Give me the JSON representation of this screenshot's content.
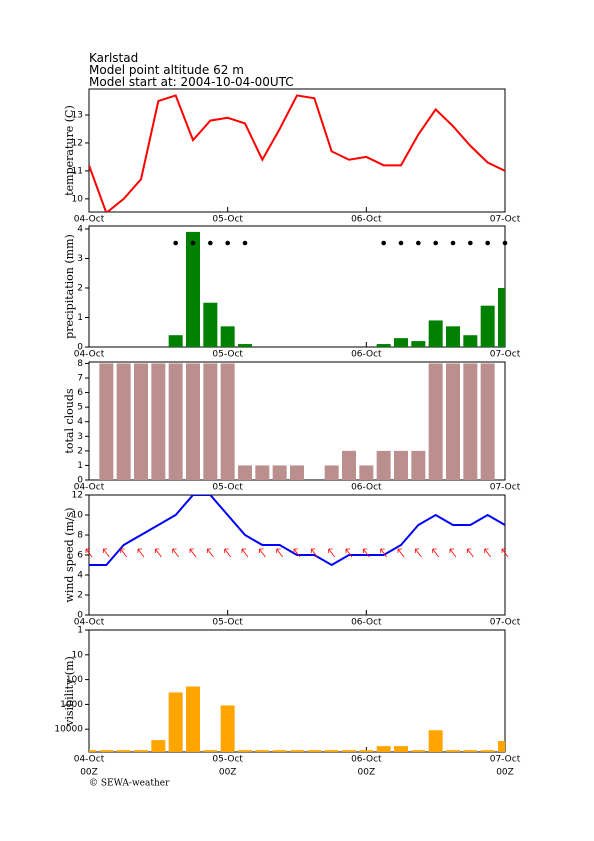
{
  "header": {
    "location": "Karlstad",
    "altitude": "Model point altitude  62 m",
    "start": "Model start at: 2004-10-04-00UTC"
  },
  "footer": "© SEWA-weather",
  "time_labels": [
    "00Z",
    "00Z",
    "00Z",
    "00Z"
  ],
  "chart_data": [
    {
      "type": "line",
      "y_label": "temperature (C)",
      "color": "#ff0000",
      "x": [
        0,
        3,
        6,
        9,
        12,
        15,
        18,
        21,
        24,
        27,
        30,
        33,
        36,
        39,
        42,
        45,
        48,
        51,
        54,
        57,
        60,
        63,
        66,
        69,
        72
      ],
      "values": [
        11.2,
        9.5,
        10.0,
        10.7,
        13.5,
        13.7,
        12.1,
        12.8,
        12.9,
        12.7,
        11.4,
        12.5,
        13.7,
        13.6,
        11.7,
        11.4,
        11.5,
        11.2,
        11.2,
        12.3,
        13.2,
        12.6,
        11.9,
        11.3,
        11.0
      ],
      "xlim": [
        0,
        72
      ],
      "xticks": [
        {
          "value": 0,
          "label": "04-Oct"
        },
        {
          "value": 24,
          "label": "05-Oct"
        },
        {
          "value": 48,
          "label": "06-Oct"
        },
        {
          "value": 72,
          "label": "07-Oct"
        }
      ],
      "ylim": [
        9.53,
        13.93
      ],
      "yticks": [
        10,
        11,
        12,
        13
      ]
    },
    {
      "type": "bar",
      "y_label": "precipitation (mm)",
      "color": "#008000",
      "x": [
        0,
        3,
        6,
        9,
        12,
        15,
        18,
        21,
        24,
        27,
        30,
        33,
        36,
        39,
        42,
        45,
        48,
        51,
        54,
        57,
        60,
        63,
        66,
        69,
        72
      ],
      "values": [
        0,
        0,
        0,
        0,
        0,
        0.4,
        3.9,
        1.5,
        0.7,
        0.1,
        0,
        0,
        0,
        0,
        0,
        0,
        0,
        0.1,
        0.3,
        0.2,
        0.9,
        0.7,
        0.4,
        1.4,
        2.0
      ],
      "xlim": [
        0,
        72
      ],
      "xticks": [
        {
          "value": 0,
          "label": "04-Oct"
        },
        {
          "value": 24,
          "label": "05-Oct"
        },
        {
          "value": 48,
          "label": "06-Oct"
        },
        {
          "value": 72,
          "label": "07-Oct"
        }
      ],
      "ylim": [
        0,
        4.1
      ],
      "yticks": [
        0,
        1,
        2,
        3,
        4
      ]
    },
    {
      "type": "bar",
      "y_label": "total clouds",
      "color": "#bc8f8f",
      "x": [
        0,
        3,
        6,
        9,
        12,
        15,
        18,
        21,
        24,
        27,
        30,
        33,
        36,
        39,
        42,
        45,
        48,
        51,
        54,
        57,
        60,
        63,
        66,
        69,
        72
      ],
      "values": [
        null,
        8,
        8,
        8,
        8,
        8,
        8,
        8,
        8,
        1,
        1,
        1,
        1,
        0,
        1,
        2,
        1,
        2,
        2,
        2,
        8,
        8,
        8,
        8,
        null
      ],
      "xlim": [
        0,
        72
      ],
      "xticks": [
        {
          "value": 0,
          "label": "04-Oct"
        },
        {
          "value": 24,
          "label": "05-Oct"
        },
        {
          "value": 48,
          "label": "06-Oct"
        },
        {
          "value": 72,
          "label": "07-Oct"
        }
      ],
      "ylim": [
        0,
        8.1
      ],
      "yticks": [
        0,
        1,
        2,
        3,
        4,
        5,
        6,
        7,
        8
      ]
    },
    {
      "type": "line",
      "y_label": "wind speed (m/s)",
      "color": "#0000ff",
      "x": [
        0,
        3,
        6,
        9,
        12,
        15,
        18,
        21,
        24,
        27,
        30,
        33,
        36,
        39,
        42,
        45,
        48,
        51,
        54,
        57,
        60,
        63,
        66,
        69,
        72
      ],
      "values": [
        5,
        5,
        7,
        8,
        9,
        10,
        12,
        12,
        10,
        8,
        7,
        7,
        6,
        6,
        5,
        6,
        6,
        6,
        7,
        9,
        10,
        9,
        9,
        10,
        9
      ],
      "xlim": [
        0,
        72
      ],
      "xticks": [
        {
          "value": 0,
          "label": "04-Oct"
        },
        {
          "value": 24,
          "label": "05-Oct"
        },
        {
          "value": 48,
          "label": "06-Oct"
        },
        {
          "value": 72,
          "label": "07-Oct"
        }
      ],
      "ylim": [
        0,
        12
      ],
      "yticks": [
        0,
        2,
        4,
        6,
        8,
        10,
        12
      ]
    },
    {
      "type": "bar",
      "y_label": "visibility (m)",
      "color": "#ffa500",
      "log_scale": true,
      "y_inverted": true,
      "x": [
        0,
        3,
        6,
        9,
        12,
        15,
        18,
        21,
        24,
        27,
        30,
        33,
        36,
        39,
        42,
        45,
        48,
        51,
        54,
        57,
        60,
        63,
        66,
        69,
        72
      ],
      "values": [
        70000,
        70000,
        70000,
        70000,
        27500,
        330,
        190,
        70000,
        1100,
        70000,
        70000,
        70000,
        70000,
        70000,
        70000,
        70000,
        70000,
        48000,
        48000,
        70000,
        11000,
        70000,
        70000,
        70000,
        30000
      ],
      "xlim": [
        0,
        72
      ],
      "xticks": [
        {
          "value": 0,
          "label": "04-Oct"
        },
        {
          "value": 24,
          "label": "05-Oct"
        },
        {
          "value": 48,
          "label": "06-Oct"
        },
        {
          "value": 72,
          "label": "07-Oct"
        }
      ],
      "ylim": [
        1,
        83000
      ],
      "yticks": [
        1,
        10,
        100,
        1000,
        10000
      ]
    }
  ]
}
